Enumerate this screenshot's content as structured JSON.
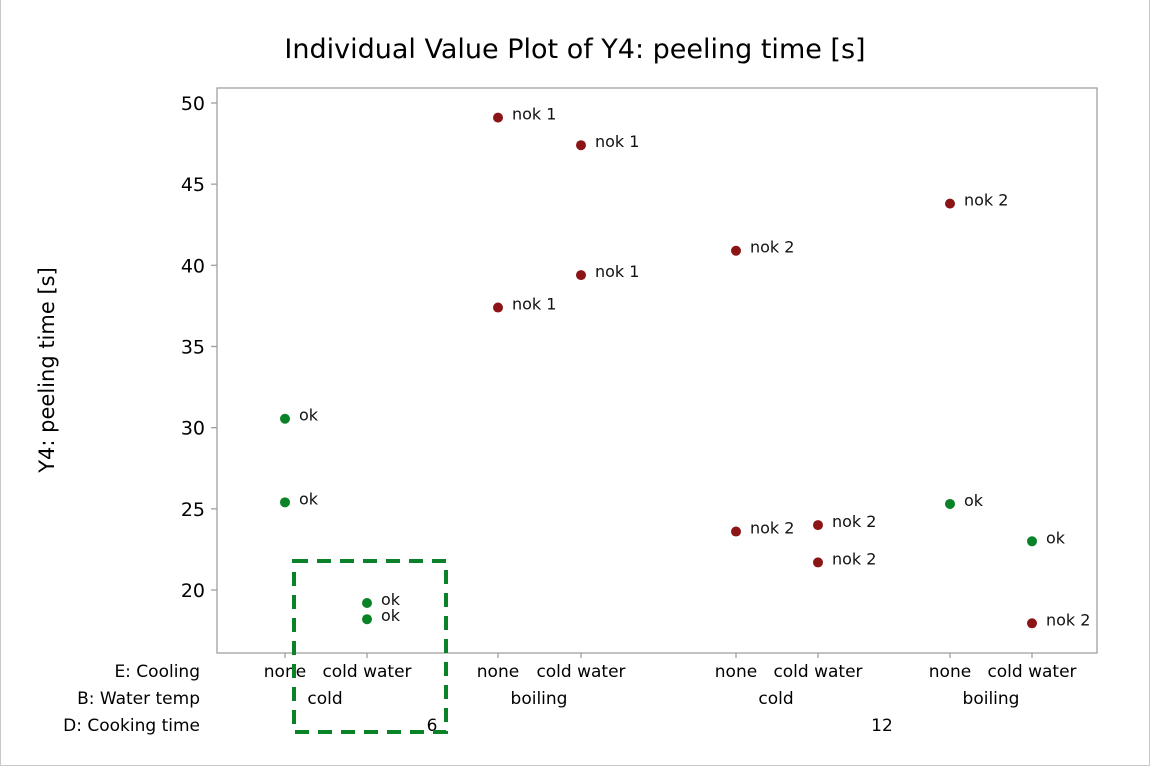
{
  "chart_data": {
    "type": "scatter",
    "title": "Individual Value Plot of Y4: peeling time [s]",
    "ylabel": "Y4: peeling time [s]",
    "xlabel": "",
    "ylim": [
      16.2,
      51.0
    ],
    "yticks": [
      20,
      25,
      30,
      35,
      40,
      45,
      50
    ],
    "grid": false,
    "legend": "none",
    "factor_labels": [
      "E: Cooling",
      "B: Water temp",
      "D: Cooking time"
    ],
    "groups": [
      {
        "cooling": "none",
        "water_temp": "cold",
        "cooking_time": "6",
        "points": [
          {
            "y": 30.55,
            "label": "ok",
            "status": "ok"
          },
          {
            "y": 25.4,
            "label": "ok",
            "status": "ok"
          }
        ]
      },
      {
        "cooling": "cold water",
        "water_temp": "cold",
        "cooking_time": "6",
        "points": [
          {
            "y": 19.2,
            "label": "ok",
            "status": "ok"
          },
          {
            "y": 18.2,
            "label": "ok",
            "status": "ok"
          }
        ]
      },
      {
        "cooling": "none",
        "water_temp": "boiling",
        "cooking_time": "6",
        "points": [
          {
            "y": 49.1,
            "label": "nok 1",
            "status": "nok"
          },
          {
            "y": 37.4,
            "label": "nok 1",
            "status": "nok"
          }
        ]
      },
      {
        "cooling": "cold water",
        "water_temp": "boiling",
        "cooking_time": "6",
        "points": [
          {
            "y": 47.4,
            "label": "nok 1",
            "status": "nok"
          },
          {
            "y": 39.4,
            "label": "nok 1",
            "status": "nok"
          }
        ]
      },
      {
        "cooling": "none",
        "water_temp": "cold",
        "cooking_time": "12",
        "points": [
          {
            "y": 40.9,
            "label": "nok 2",
            "status": "nok"
          },
          {
            "y": 23.6,
            "label": "nok 2",
            "status": "nok"
          }
        ]
      },
      {
        "cooling": "cold water",
        "water_temp": "cold",
        "cooking_time": "12",
        "points": [
          {
            "y": 24.0,
            "label": "nok 2",
            "status": "nok"
          },
          {
            "y": 21.7,
            "label": "nok 2",
            "status": "nok"
          }
        ]
      },
      {
        "cooling": "none",
        "water_temp": "boiling",
        "cooking_time": "12",
        "points": [
          {
            "y": 43.8,
            "label": "nok 2",
            "status": "nok"
          },
          {
            "y": 25.3,
            "label": "ok",
            "status": "ok"
          }
        ]
      },
      {
        "cooling": "cold water",
        "water_temp": "boiling",
        "cooking_time": "12",
        "points": [
          {
            "y": 23.0,
            "label": "ok",
            "status": "ok"
          },
          {
            "y": 17.95,
            "label": "nok 2",
            "status": "nok"
          }
        ]
      }
    ],
    "water_temp_labels": [
      "cold",
      "boiling",
      "cold",
      "boiling"
    ],
    "cooking_time_labels": [
      "6",
      "12"
    ],
    "highlight": {
      "description": "dashed green box around cold water / cold / 6",
      "group_index": 1
    },
    "colors": {
      "ok": "#0a8228",
      "nok": "#8b1416",
      "highlight": "#0a8228",
      "axis": "#a0a0a0"
    }
  }
}
